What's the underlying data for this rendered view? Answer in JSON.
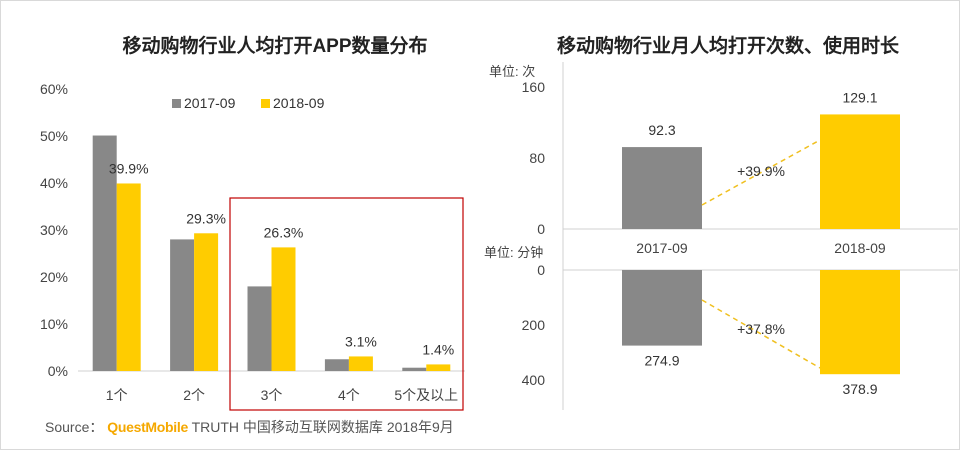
{
  "colors": {
    "gray": "#888888",
    "yellow": "#ffcc00",
    "highlight": "#c00000",
    "growth_line": "#f0c020",
    "axis": "#d0d0d0"
  },
  "chart_data": [
    {
      "type": "bar",
      "title": "移动购物行业人均打开APP数量分布",
      "categories": [
        "1个",
        "2个",
        "3个",
        "4个",
        "5个及以上"
      ],
      "series": [
        {
          "name": "2017-09",
          "values": [
            50.1,
            28.0,
            18.0,
            2.5,
            0.7
          ]
        },
        {
          "name": "2018-09",
          "values": [
            39.9,
            29.3,
            26.3,
            3.1,
            1.4
          ]
        }
      ],
      "data_labels": [
        "39.9%",
        "29.3%",
        "26.3%",
        "3.1%",
        "1.4%"
      ],
      "yticks": [
        "0%",
        "10%",
        "20%",
        "30%",
        "40%",
        "50%",
        "60%"
      ],
      "ylim": [
        0,
        60
      ],
      "legend": "top",
      "highlight_categories": [
        "3个",
        "4个",
        "5个及以上"
      ]
    },
    {
      "type": "bar",
      "title": "移动购物行业月人均打开次数、使用时长",
      "panels": [
        {
          "unit": "单位: 次",
          "categories": [
            "2017-09",
            "2018-09"
          ],
          "values": [
            92.3,
            129.1
          ],
          "data_labels": [
            "92.3",
            "129.1"
          ],
          "yticks": [
            "0",
            "80",
            "160"
          ],
          "ylim": [
            0,
            160
          ],
          "growth": "+39.9%"
        },
        {
          "unit": "单位: 分钟",
          "categories": [
            "2017-09",
            "2018-09"
          ],
          "values": [
            274.9,
            378.9
          ],
          "data_labels": [
            "274.9",
            "378.9"
          ],
          "yticks": [
            "0",
            "200",
            "400"
          ],
          "ylim": [
            0,
            400
          ],
          "inverted": true,
          "growth": "+37.8%"
        }
      ]
    }
  ],
  "source": {
    "prefix": "Source：",
    "brand": "QuestMobile",
    "text": "TRUTH 中国移动互联网数据库 2018年9月"
  }
}
